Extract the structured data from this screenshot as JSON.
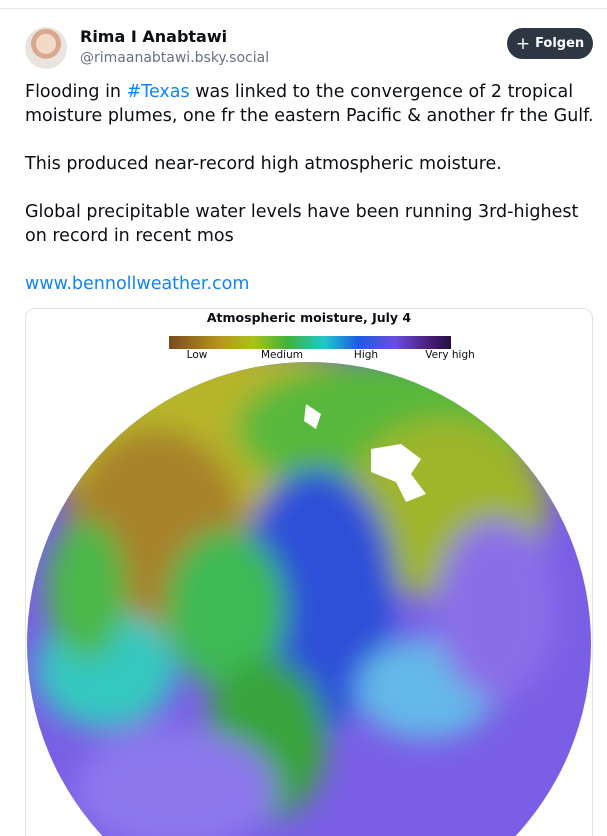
{
  "author": {
    "name": "Rima I Anabtawi",
    "handle": "@rimaanabtawi.bsky.social"
  },
  "follow_button": "Folgen",
  "post": {
    "paragraph_1": {
      "before": "Flooding in ",
      "hashtag": "#Texas",
      "after": " was linked to the convergence of 2 tropical moisture plumes, one fr the eastern Pacific & another fr the Gulf."
    },
    "paragraph_2": "This produced near-record high atmospheric moisture.",
    "paragraph_3": "Global precipitable water levels have been running 3rd-highest on record in recent mos",
    "link": "www.bennollweather.com"
  },
  "image": {
    "title": "Atmospheric moisture, July 4",
    "legend": [
      "Low",
      "Medium",
      "High",
      "Very high"
    ]
  }
}
